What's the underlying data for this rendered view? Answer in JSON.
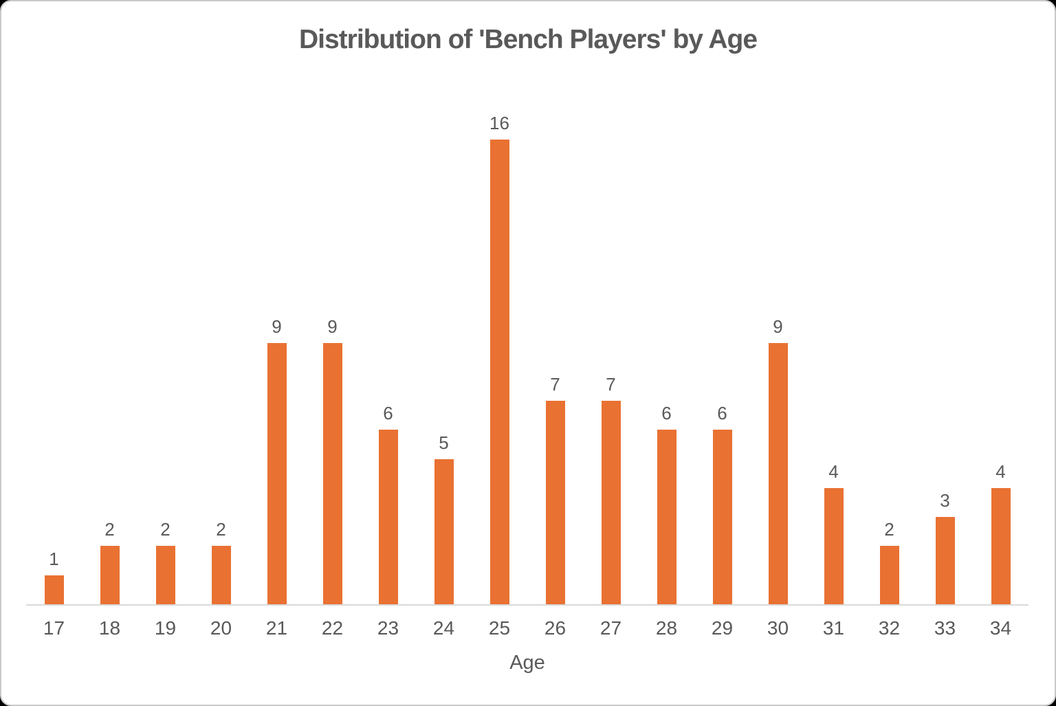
{
  "chart_data": {
    "type": "bar",
    "title": "Distribution of 'Bench Players' by Age",
    "xlabel": "Age",
    "ylabel": "",
    "categories": [
      "17",
      "18",
      "19",
      "20",
      "21",
      "22",
      "23",
      "24",
      "25",
      "26",
      "27",
      "28",
      "29",
      "30",
      "31",
      "32",
      "33",
      "34"
    ],
    "values": [
      1,
      2,
      2,
      2,
      9,
      9,
      6,
      5,
      16,
      7,
      7,
      6,
      6,
      9,
      4,
      2,
      3,
      4
    ],
    "ylim": [
      0,
      16
    ],
    "grid": false,
    "legend": "none",
    "data_labels": "above-bars",
    "bar_color": "#E97132",
    "text_color": "#595959",
    "axis_line_color": "#d9d9d9",
    "background_color": "#ffffff"
  }
}
